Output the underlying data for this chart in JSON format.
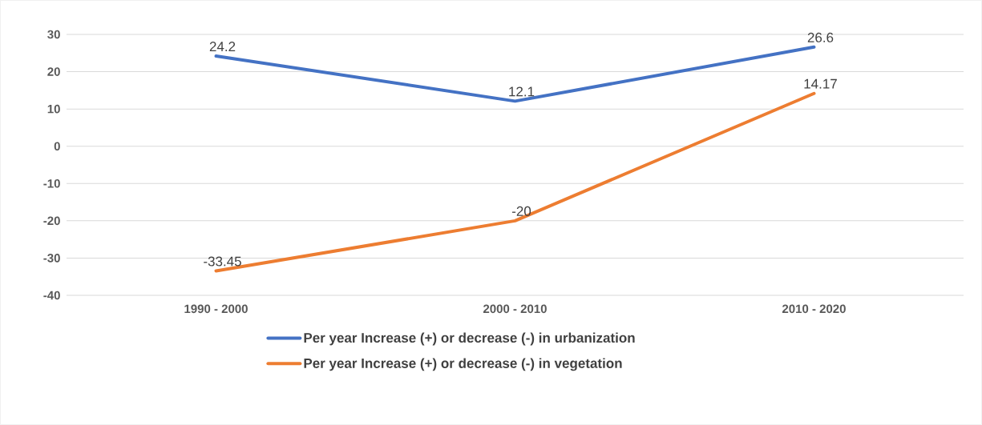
{
  "chart_data": {
    "type": "line",
    "categories": [
      "1990 - 2000",
      "2000 - 2010",
      "2010 - 2020"
    ],
    "series": [
      {
        "name": "Per year Increase (+) or decrease (-) in urbanization",
        "color": "#4472c4",
        "values": [
          24.2,
          12.1,
          26.6
        ],
        "value_labels": [
          "24.2",
          "12.1",
          "26.6"
        ]
      },
      {
        "name": "Per year Increase (+) or decrease (-) in vegetation",
        "color": "#ed7d31",
        "values": [
          -33.45,
          -20,
          14.17
        ],
        "value_labels": [
          "-33.45",
          "-20",
          "14.17"
        ]
      }
    ],
    "ylim": [
      -40,
      30
    ],
    "yticks": [
      -40,
      -30,
      -20,
      -10,
      0,
      10,
      20,
      30
    ],
    "grid": "y",
    "legend": "bottom",
    "marker": "none",
    "line_style": "solid"
  }
}
